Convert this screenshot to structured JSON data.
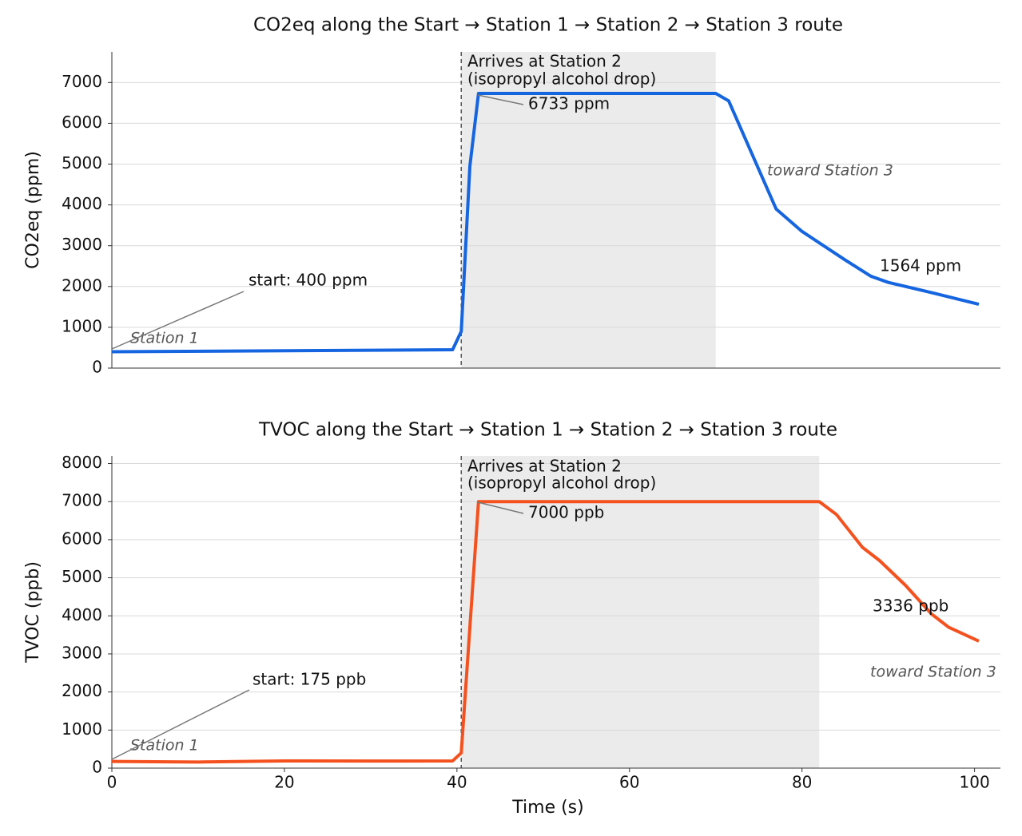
{
  "chart_data": [
    {
      "type": "line",
      "title": "CO2eq along the Start → Station 1 → Station 2 → Station 3 route",
      "ylabel": "CO2eq (ppm)",
      "x": [
        0,
        39.5,
        40.5,
        41.5,
        42.5,
        70,
        71.5,
        77,
        80,
        85,
        88,
        90,
        95,
        100.5
      ],
      "values": [
        400,
        450,
        900,
        4950,
        6733,
        6733,
        6550,
        3900,
        3350,
        2650,
        2250,
        2100,
        1850,
        1564
      ],
      "color": "#1565e0",
      "xlim": [
        0,
        103
      ],
      "ylim": [
        0,
        7750
      ],
      "yticks": [
        0,
        1000,
        2000,
        3000,
        4000,
        5000,
        6000,
        7000
      ],
      "grid": true,
      "shade": [
        40.5,
        70
      ],
      "vline": 40.5,
      "annotations": [
        "Station 1",
        "start: 400 ppm",
        "Arrives at Station 2",
        "(isopropyl alcohol drop)",
        "6733 ppm",
        "toward Station 3",
        "1564 ppm"
      ]
    },
    {
      "type": "line",
      "title": "TVOC along the Start → Station 1 → Station 2 → Station 3 route",
      "ylabel": "TVOC (ppb)",
      "xlabel": "Time (s)",
      "x": [
        0,
        10,
        20,
        30,
        39.5,
        40.5,
        42.5,
        82,
        84,
        87,
        89,
        92,
        95,
        97,
        100.5
      ],
      "values": [
        175,
        160,
        190,
        185,
        190,
        400,
        7000,
        7000,
        6660,
        5800,
        5450,
        4800,
        4050,
        3700,
        3336
      ],
      "color": "#f4511e",
      "xlim": [
        0,
        103
      ],
      "ylim": [
        0,
        8200
      ],
      "xticks": [
        0,
        20,
        40,
        60,
        80,
        100
      ],
      "yticks": [
        0,
        1000,
        2000,
        3000,
        4000,
        5000,
        6000,
        7000,
        8000
      ],
      "grid": true,
      "shade": [
        40.5,
        82
      ],
      "vline": 40.5,
      "annotations": [
        "Station 1",
        "start: 175 ppb",
        "Arrives at Station 2",
        "(isopropyl alcohol drop)",
        "7000 ppb",
        "3336 ppb",
        "toward Station 3"
      ]
    }
  ]
}
